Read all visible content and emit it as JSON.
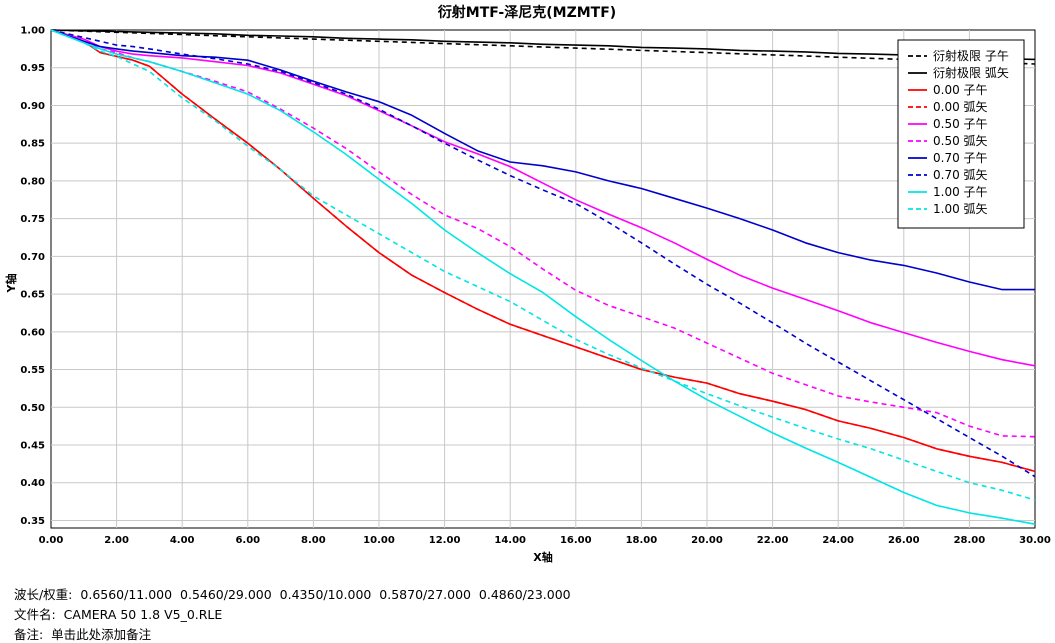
{
  "chart_data": {
    "type": "line",
    "title": "衍射MTF-泽尼克(MZMTF)",
    "xlabel": "X轴",
    "ylabel": "Y轴",
    "xlim": [
      0,
      30
    ],
    "ylim": [
      0.34,
      1.0
    ],
    "xticks": [
      "0.00",
      "2.00",
      "4.00",
      "6.00",
      "8.00",
      "10.00",
      "12.00",
      "14.00",
      "16.00",
      "18.00",
      "20.00",
      "22.00",
      "24.00",
      "26.00",
      "28.00",
      "30.00"
    ],
    "yticks": [
      "1.00",
      "0.95",
      "0.90",
      "0.85",
      "0.80",
      "0.75",
      "0.70",
      "0.65",
      "0.60",
      "0.55",
      "0.50",
      "0.45",
      "0.40",
      "0.35"
    ],
    "grid": true,
    "legend_position": "top-right",
    "x": [
      0,
      1,
      1.5,
      2,
      2.5,
      3,
      4,
      5,
      6,
      7,
      8,
      9,
      10,
      11,
      12,
      13,
      14,
      15,
      16,
      17,
      18,
      19,
      20,
      21,
      22,
      23,
      24,
      25,
      26,
      27,
      28,
      29,
      30
    ],
    "series": [
      {
        "name": "衍射极限 子午",
        "color": "#000000",
        "dash": true,
        "values": [
          1.0,
          0.9985,
          0.9978,
          0.997,
          0.9963,
          0.9955,
          0.994,
          0.9925,
          0.991,
          0.9895,
          0.988,
          0.9865,
          0.985,
          0.9835,
          0.982,
          0.9805,
          0.979,
          0.9775,
          0.976,
          0.9745,
          0.973,
          0.9715,
          0.97,
          0.9685,
          0.967,
          0.9655,
          0.964,
          0.9625,
          0.961,
          0.9595,
          0.958,
          0.9565,
          0.955
        ]
      },
      {
        "name": "衍射极限 弧矢",
        "color": "#000000",
        "dash": false,
        "values": [
          1.0,
          0.999,
          0.9985,
          0.998,
          0.9975,
          0.997,
          0.996,
          0.995,
          0.993,
          0.992,
          0.991,
          0.989,
          0.988,
          0.987,
          0.985,
          0.984,
          0.983,
          0.981,
          0.98,
          0.979,
          0.977,
          0.976,
          0.975,
          0.973,
          0.972,
          0.971,
          0.969,
          0.968,
          0.967,
          0.965,
          0.964,
          0.962,
          0.961
        ]
      },
      {
        "name": "0.00 子午",
        "color": "#ff0000",
        "dash": false,
        "values": [
          1.0,
          0.985,
          0.97,
          0.965,
          0.96,
          0.952,
          0.915,
          0.882,
          0.85,
          0.815,
          0.777,
          0.74,
          0.705,
          0.675,
          0.652,
          0.63,
          0.61,
          0.595,
          0.58,
          0.565,
          0.55,
          0.54,
          0.532,
          0.518,
          0.508,
          0.497,
          0.482,
          0.472,
          0.46,
          0.445,
          0.435,
          0.427,
          0.415
        ]
      },
      {
        "name": "0.00 弧矢",
        "color": "#ff0000",
        "dash": true,
        "values": [
          1.0,
          0.985,
          0.97,
          0.965,
          0.96,
          0.952,
          0.915,
          0.882,
          0.85,
          0.815,
          0.777,
          0.74,
          0.705,
          0.675,
          0.652,
          0.63,
          0.61,
          0.595,
          0.58,
          0.565,
          0.55,
          0.54,
          0.532,
          0.518,
          0.508,
          0.497,
          0.482,
          0.472,
          0.46,
          0.445,
          0.435,
          0.427,
          0.415
        ]
      },
      {
        "name": "0.50 子午",
        "color": "#ff00ff",
        "dash": false,
        "values": [
          1.0,
          0.988,
          0.978,
          0.972,
          0.968,
          0.966,
          0.963,
          0.958,
          0.953,
          0.943,
          0.928,
          0.913,
          0.893,
          0.873,
          0.852,
          0.836,
          0.819,
          0.797,
          0.775,
          0.756,
          0.738,
          0.718,
          0.696,
          0.675,
          0.658,
          0.643,
          0.628,
          0.612,
          0.599,
          0.586,
          0.574,
          0.563,
          0.555
        ]
      },
      {
        "name": "0.50 弧矢",
        "color": "#ff00ff",
        "dash": true,
        "values": [
          1.0,
          0.985,
          0.975,
          0.97,
          0.963,
          0.958,
          0.945,
          0.932,
          0.918,
          0.895,
          0.87,
          0.843,
          0.812,
          0.782,
          0.755,
          0.737,
          0.713,
          0.683,
          0.655,
          0.635,
          0.62,
          0.605,
          0.585,
          0.565,
          0.545,
          0.53,
          0.515,
          0.507,
          0.5,
          0.493,
          0.475,
          0.462,
          0.461
        ]
      },
      {
        "name": "0.70 子午",
        "color": "#0000cd",
        "dash": false,
        "values": [
          1.0,
          0.985,
          0.978,
          0.975,
          0.972,
          0.97,
          0.966,
          0.964,
          0.96,
          0.947,
          0.932,
          0.918,
          0.905,
          0.887,
          0.863,
          0.84,
          0.825,
          0.82,
          0.812,
          0.8,
          0.79,
          0.777,
          0.764,
          0.75,
          0.735,
          0.718,
          0.705,
          0.695,
          0.688,
          0.678,
          0.666,
          0.656,
          0.656
        ]
      },
      {
        "name": "0.70 弧矢",
        "color": "#0000cd",
        "dash": true,
        "values": [
          1.0,
          0.99,
          0.985,
          0.98,
          0.978,
          0.975,
          0.968,
          0.962,
          0.955,
          0.945,
          0.93,
          0.915,
          0.895,
          0.873,
          0.85,
          0.828,
          0.807,
          0.788,
          0.77,
          0.745,
          0.718,
          0.69,
          0.663,
          0.638,
          0.612,
          0.585,
          0.56,
          0.535,
          0.51,
          0.485,
          0.46,
          0.435,
          0.408
        ]
      },
      {
        "name": "1.00 子午",
        "color": "#00e5e5",
        "dash": false,
        "values": [
          1.0,
          0.983,
          0.975,
          0.968,
          0.963,
          0.958,
          0.945,
          0.93,
          0.915,
          0.893,
          0.865,
          0.835,
          0.802,
          0.77,
          0.735,
          0.705,
          0.677,
          0.652,
          0.62,
          0.59,
          0.562,
          0.535,
          0.51,
          0.488,
          0.466,
          0.446,
          0.427,
          0.407,
          0.387,
          0.37,
          0.36,
          0.353,
          0.345
        ]
      },
      {
        "name": "1.00 弧矢",
        "color": "#00e5e5",
        "dash": true,
        "values": [
          1.0,
          0.983,
          0.972,
          0.965,
          0.955,
          0.945,
          0.91,
          0.88,
          0.846,
          0.815,
          0.78,
          0.755,
          0.73,
          0.705,
          0.68,
          0.66,
          0.64,
          0.615,
          0.59,
          0.57,
          0.552,
          0.535,
          0.518,
          0.502,
          0.487,
          0.472,
          0.458,
          0.445,
          0.43,
          0.415,
          0.4,
          0.39,
          0.377
        ]
      }
    ]
  },
  "footer": {
    "wavelength_label": "波长/权重:",
    "wavelength_value": "0.6560/11.000  0.5460/29.000  0.4350/10.000  0.5870/27.000  0.4860/23.000",
    "file_label": "文件名:",
    "file_value": "CAMERA 50 1.8 V5_0.RLE",
    "note_label": "备注:",
    "note_value": "单击此处添加备注"
  }
}
